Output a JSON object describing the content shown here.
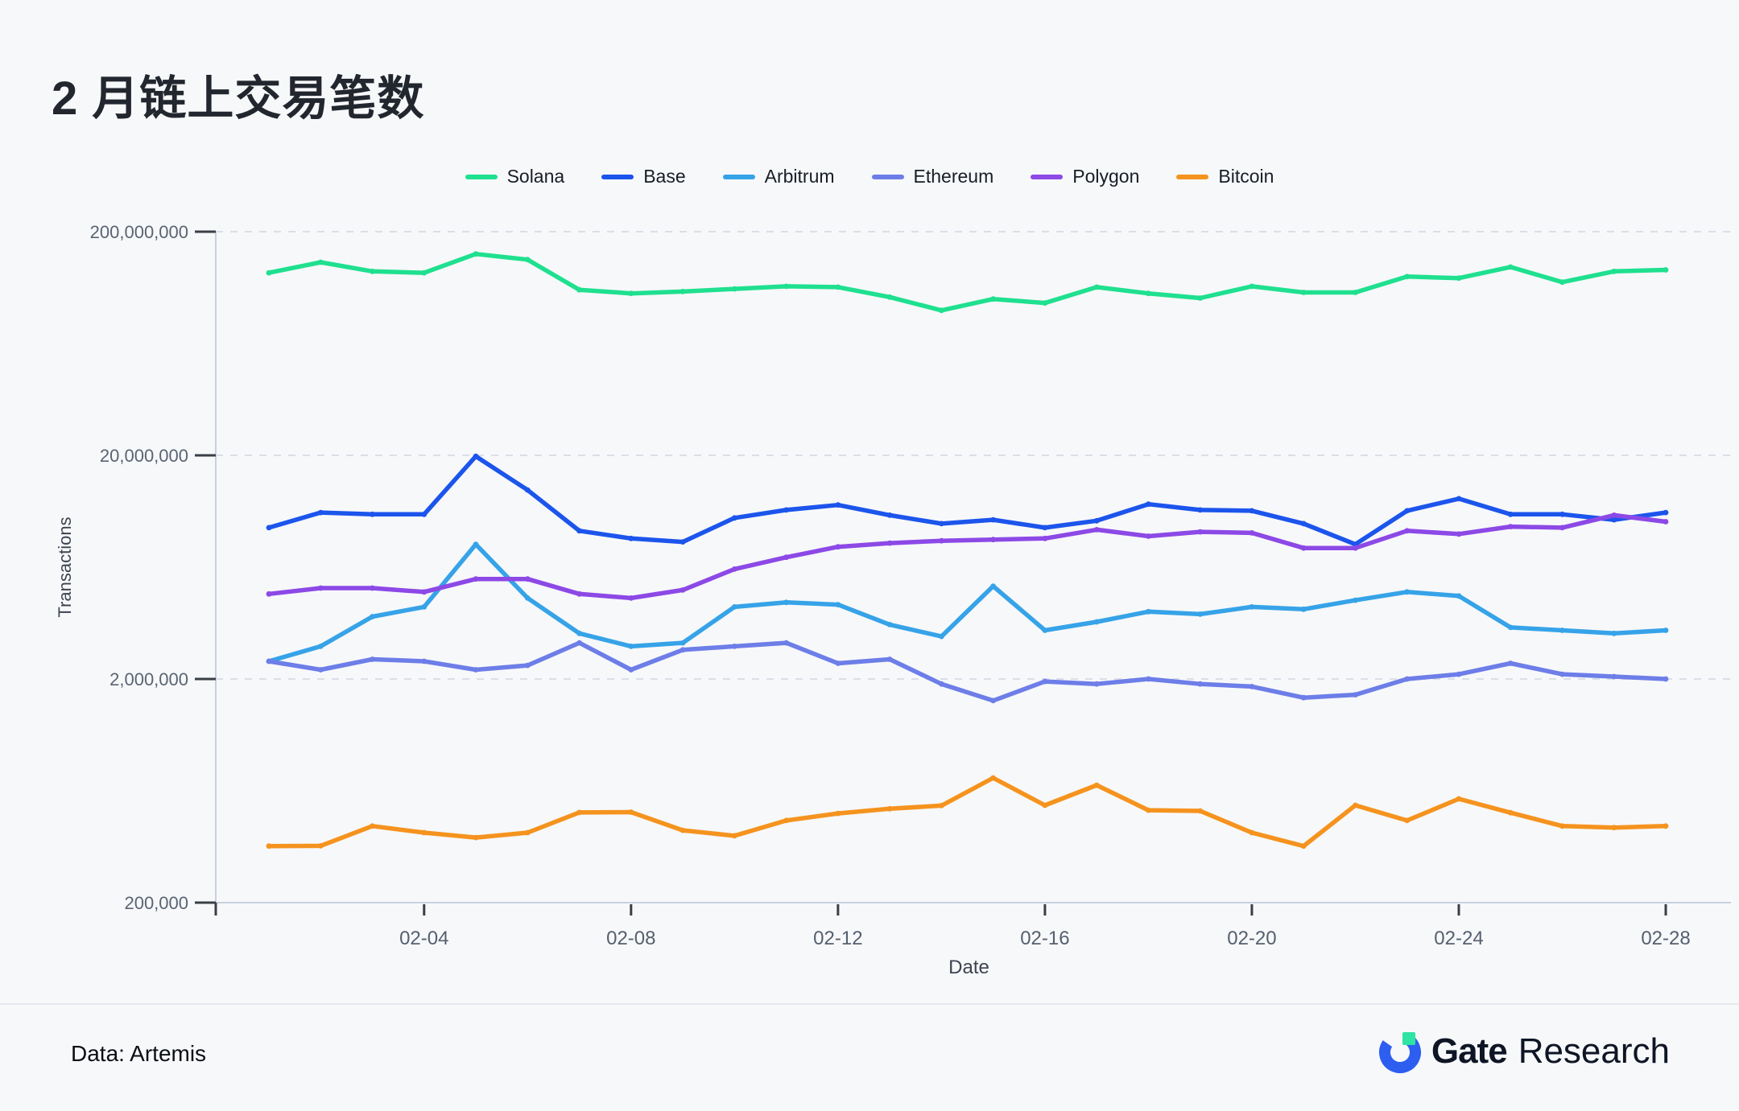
{
  "page": {
    "title": "2 月链上交易笔数",
    "source_note": "Data: Artemis",
    "brand": {
      "name_bold": "Gate",
      "name_light": "Research",
      "logo_blue": "#2e5ef0",
      "logo_green": "#2fe3a2"
    }
  },
  "chart_data": {
    "type": "line",
    "title": "2 月链上交易笔数",
    "xlabel": "Date",
    "ylabel": "Transactions",
    "y_scale": "log",
    "ylim": [
      200000,
      200000000
    ],
    "grid": "horizontal-dashed",
    "legend_position": "top",
    "y_ticks": [
      {
        "value": 200000000,
        "label": "200,000,000"
      },
      {
        "value": 20000000,
        "label": "20,000,000"
      },
      {
        "value": 2000000,
        "label": "2,000,000"
      },
      {
        "value": 200000,
        "label": "200,000"
      }
    ],
    "x": [
      "02-01",
      "02-02",
      "02-03",
      "02-04",
      "02-05",
      "02-06",
      "02-07",
      "02-08",
      "02-09",
      "02-10",
      "02-11",
      "02-12",
      "02-13",
      "02-14",
      "02-15",
      "02-16",
      "02-17",
      "02-18",
      "02-19",
      "02-20",
      "02-21",
      "02-22",
      "02-23",
      "02-24",
      "02-25",
      "02-26",
      "02-27",
      "02-28"
    ],
    "x_ticks": [
      {
        "index": 3,
        "label": "02-04"
      },
      {
        "index": 7,
        "label": "02-08"
      },
      {
        "index": 11,
        "label": "02-12"
      },
      {
        "index": 15,
        "label": "02-16"
      },
      {
        "index": 19,
        "label": "02-20"
      },
      {
        "index": 23,
        "label": "02-24"
      },
      {
        "index": 27,
        "label": "02-28"
      }
    ],
    "series": [
      {
        "name": "Solana",
        "color": "#1fe08f",
        "values": [
          131000000,
          146000000,
          133000000,
          131000000,
          159000000,
          150000000,
          110000000,
          106000000,
          108000000,
          111000000,
          114000000,
          113000000,
          102000000,
          89000000,
          100000000,
          96000000,
          113000000,
          106000000,
          101000000,
          114000000,
          107000000,
          107000000,
          126000000,
          124000000,
          139000000,
          119000000,
          133000000,
          135000000
        ]
      },
      {
        "name": "Base",
        "color": "#1c55ec",
        "values": [
          9500000,
          11100000,
          10900000,
          10900000,
          19800000,
          14000000,
          9200000,
          8500000,
          8200000,
          10500000,
          11400000,
          12000000,
          10800000,
          9900000,
          10300000,
          9500000,
          10200000,
          12100000,
          11400000,
          11300000,
          9900000,
          8000000,
          11300000,
          12800000,
          10900000,
          10900000,
          10300000,
          11100000
        ]
      },
      {
        "name": "Arbitrum",
        "color": "#36a3e8",
        "values": [
          2400000,
          2800000,
          3800000,
          4200000,
          8000000,
          4600000,
          3200000,
          2800000,
          2900000,
          4200000,
          4400000,
          4300000,
          3500000,
          3100000,
          5200000,
          3300000,
          3600000,
          4000000,
          3900000,
          4200000,
          4100000,
          4500000,
          4900000,
          4700000,
          3400000,
          3300000,
          3200000,
          3300000
        ]
      },
      {
        "name": "Ethereum",
        "color": "#6d7ee8",
        "values": [
          2400000,
          2200000,
          2450000,
          2400000,
          2200000,
          2300000,
          2900000,
          2200000,
          2700000,
          2800000,
          2900000,
          2350000,
          2450000,
          1900000,
          1600000,
          1950000,
          1900000,
          2000000,
          1900000,
          1850000,
          1650000,
          1700000,
          2000000,
          2100000,
          2350000,
          2100000,
          2050000,
          2000000
        ]
      },
      {
        "name": "Polygon",
        "color": "#8c49e6",
        "values": [
          4800000,
          5100000,
          5100000,
          4900000,
          5600000,
          5600000,
          4800000,
          4600000,
          5000000,
          6200000,
          7000000,
          7800000,
          8100000,
          8300000,
          8400000,
          8500000,
          9300000,
          8700000,
          9100000,
          9000000,
          7700000,
          7700000,
          9200000,
          8900000,
          9600000,
          9500000,
          10800000,
          10100000
        ]
      },
      {
        "name": "Bitcoin",
        "color": "#f5931e",
        "values": [
          358000,
          359000,
          440000,
          411000,
          391000,
          411000,
          506000,
          508000,
          421000,
          398000,
          466000,
          501000,
          526000,
          543000,
          722000,
          545000,
          670000,
          518000,
          514000,
          411000,
          358000,
          545000,
          466000,
          582000,
          505000,
          440000,
          433000,
          440000
        ]
      }
    ]
  }
}
